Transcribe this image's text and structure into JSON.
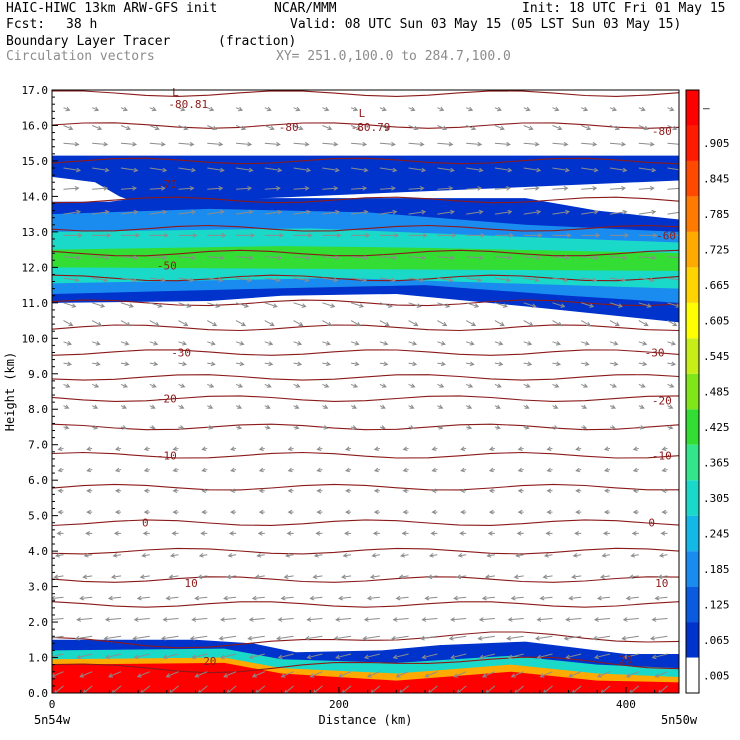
{
  "header": {
    "model": "HAIC-HIWC 13km ARW-GFS init",
    "org": "NCAR/MMM",
    "init": "Init: 18 UTC Fri 01 May 15",
    "fcst_label": "Fcst:",
    "fcst_value": "38 h",
    "valid": "Valid: 08 UTC Sun 03 May 15 (05 LST Sun 03 May 15)",
    "field": "Boundary Layer Tracer",
    "field_units": "(fraction)",
    "vectors": "Circulation vectors",
    "xsec": "XY= 251.0,100.0 to 284.7,100.0"
  },
  "colors": {
    "contour": "#8b1a1a",
    "vector": "#8c8c8c",
    "scale": [
      "#ffffff",
      "#0033cc",
      "#0a5be0",
      "#1a8cf0",
      "#14b8e6",
      "#1ad9c8",
      "#33e68c",
      "#33dd33",
      "#80e61a",
      "#c8ee1a",
      "#ffff00",
      "#ffd400",
      "#ffaa00",
      "#ff7a00",
      "#ff4a00",
      "#ff1a00",
      "#ff0000"
    ]
  },
  "chart_data": {
    "type": "cross-section",
    "xlabel": "Distance (km)",
    "ylabel": "Height (km)",
    "xlim": [
      0,
      437
    ],
    "ylim": [
      0,
      17
    ],
    "x_ticks": [
      0,
      200,
      400
    ],
    "y_ticks": [
      "0.0",
      "1.0",
      "2.0",
      "3.0",
      "4.0",
      "5.0",
      "6.0",
      "7.0",
      "8.0",
      "9.0",
      "10.0",
      "11.0",
      "12.0",
      "13.0",
      "14.0",
      "15.0",
      "16.0",
      "17.0"
    ],
    "x_left_label": "5n54w",
    "x_right_label": "5n50w",
    "colorbar": [
      ".005",
      ".065",
      ".125",
      ".185",
      ".245",
      ".305",
      ".365",
      ".425",
      ".485",
      ".545",
      ".605",
      ".665",
      ".725",
      ".785",
      ".845",
      ".905",
      "–"
    ],
    "contour_labels": [
      {
        "text": "L",
        "x": 86,
        "y": 16.95
      },
      {
        "text": "-80.81",
        "x": 95,
        "y": 16.6
      },
      {
        "text": "-80",
        "x": 165,
        "y": 15.95
      },
      {
        "text": "L",
        "x": 216,
        "y": 16.35
      },
      {
        "text": "-80.79",
        "x": 222,
        "y": 15.95
      },
      {
        "text": "-80",
        "x": 425,
        "y": 15.85
      },
      {
        "text": "-70",
        "x": 80,
        "y": 14.35
      },
      {
        "text": "-60",
        "x": 428,
        "y": 12.9
      },
      {
        "text": "-50",
        "x": 80,
        "y": 12.05
      },
      {
        "text": "-30",
        "x": 90,
        "y": 9.6
      },
      {
        "text": "-30",
        "x": 420,
        "y": 9.6
      },
      {
        "text": "-20",
        "x": 80,
        "y": 8.3
      },
      {
        "text": "-20",
        "x": 425,
        "y": 8.25
      },
      {
        "text": "-10",
        "x": 80,
        "y": 6.7
      },
      {
        "text": "-10",
        "x": 425,
        "y": 6.7
      },
      {
        "text": "0",
        "x": 65,
        "y": 4.8
      },
      {
        "text": "0",
        "x": 418,
        "y": 4.8
      },
      {
        "text": "10",
        "x": 97,
        "y": 3.1
      },
      {
        "text": "10",
        "x": 425,
        "y": 3.1
      },
      {
        "text": "20",
        "x": 110,
        "y": 0.9
      },
      {
        "text": "20",
        "x": 400,
        "y": 0.95
      }
    ],
    "isotherm_heights": [
      0.8,
      1.5,
      2.5,
      3.2,
      4.0,
      4.8,
      5.8,
      6.7,
      7.5,
      8.3,
      8.9,
      9.6,
      10.3,
      11.0,
      11.7,
      12.4,
      13.1,
      13.9,
      15.0,
      16.0,
      16.9
    ],
    "vector_rows": [
      {
        "z": 16.5,
        "u": 4,
        "w": -0.1
      },
      {
        "z": 16.0,
        "u": 6,
        "w": -0.15
      },
      {
        "z": 15.5,
        "u": 10,
        "w": -0.05
      },
      {
        "z": 14.8,
        "u": 11,
        "w": -0.1
      },
      {
        "z": 14.2,
        "u": 10,
        "w": 0.05
      },
      {
        "z": 13.5,
        "u": 11,
        "w": 0.1
      },
      {
        "z": 12.9,
        "u": 12,
        "w": 0.0
      },
      {
        "z": 12.3,
        "u": 11,
        "w": -0.05
      },
      {
        "z": 11.7,
        "u": 10,
        "w": -0.1
      },
      {
        "z": 11.0,
        "u": 8,
        "w": -0.15
      },
      {
        "z": 10.5,
        "u": 6,
        "w": -0.2
      },
      {
        "z": 9.9,
        "u": 5,
        "w": -0.1
      },
      {
        "z": 9.3,
        "u": 5,
        "w": -0.05
      },
      {
        "z": 8.7,
        "u": 4,
        "w": -0.1
      },
      {
        "z": 8.1,
        "u": 3,
        "w": -0.1
      },
      {
        "z": 7.5,
        "u": 2,
        "w": -0.05
      },
      {
        "z": 6.9,
        "u": -2,
        "w": -0.05
      },
      {
        "z": 6.3,
        "u": -3,
        "w": -0.05
      },
      {
        "z": 5.7,
        "u": -3,
        "w": 0.0
      },
      {
        "z": 5.1,
        "u": -3,
        "w": 0.0
      },
      {
        "z": 4.5,
        "u": -4,
        "w": 0.0
      },
      {
        "z": 3.9,
        "u": -5,
        "w": -0.05
      },
      {
        "z": 3.3,
        "u": -6,
        "w": -0.05
      },
      {
        "z": 2.7,
        "u": -8,
        "w": -0.05
      },
      {
        "z": 2.1,
        "u": -10,
        "w": -0.05
      },
      {
        "z": 1.6,
        "u": -11,
        "w": -0.1
      },
      {
        "z": 1.1,
        "u": -10,
        "w": -0.15
      },
      {
        "z": 0.6,
        "u": -8,
        "w": -0.2
      },
      {
        "z": 0.2,
        "u": -6,
        "w": -0.3
      }
    ],
    "tracer_bands": [
      {
        "level": ".005-.065",
        "top": [
          [
            0,
            15.15
          ],
          [
            437,
            15.15
          ]
        ],
        "bottom": [
          [
            0,
            14.55
          ],
          [
            30,
            14.4
          ],
          [
            47,
            14.0
          ],
          [
            60,
            13.8
          ],
          [
            437,
            14.45
          ]
        ]
      },
      {
        "level": ".005-.065",
        "top": [
          [
            0,
            13.85
          ],
          [
            40,
            13.85
          ],
          [
            60,
            13.95
          ],
          [
            330,
            13.95
          ],
          [
            380,
            13.6
          ],
          [
            437,
            13.35
          ]
        ],
        "bottom": [
          [
            0,
            11.0
          ],
          [
            110,
            11.05
          ],
          [
            160,
            11.2
          ],
          [
            240,
            11.25
          ],
          [
            330,
            10.9
          ],
          [
            437,
            10.45
          ]
        ]
      },
      {
        "level": ".125-.185",
        "top": [
          [
            0,
            13.5
          ],
          [
            110,
            13.65
          ],
          [
            220,
            13.55
          ],
          [
            330,
            13.2
          ],
          [
            437,
            13.0
          ]
        ],
        "bottom": [
          [
            0,
            11.25
          ],
          [
            150,
            11.4
          ],
          [
            260,
            11.5
          ],
          [
            360,
            11.2
          ],
          [
            437,
            11.0
          ]
        ]
      },
      {
        "level": ".245-.305",
        "top": [
          [
            0,
            13.0
          ],
          [
            180,
            13.1
          ],
          [
            300,
            12.9
          ],
          [
            437,
            12.7
          ]
        ],
        "bottom": [
          [
            0,
            11.55
          ],
          [
            200,
            11.7
          ],
          [
            437,
            11.4
          ]
        ]
      },
      {
        "level": ".365-.425",
        "top": [
          [
            0,
            12.5
          ],
          [
            160,
            12.6
          ],
          [
            260,
            12.55
          ],
          [
            437,
            12.4
          ]
        ],
        "bottom": [
          [
            0,
            12.0
          ],
          [
            437,
            11.9
          ]
        ]
      },
      {
        "level": ".005-.065",
        "top": [
          [
            0,
            1.5
          ],
          [
            100,
            1.5
          ],
          [
            140,
            1.4
          ],
          [
            170,
            1.15
          ],
          [
            230,
            1.2
          ],
          [
            270,
            1.35
          ],
          [
            330,
            1.45
          ],
          [
            360,
            1.3
          ],
          [
            400,
            1.1
          ],
          [
            437,
            1.1
          ]
        ],
        "bottom": [
          [
            0,
            0.0
          ],
          [
            437,
            0.0
          ]
        ]
      },
      {
        "level": ".245-.305",
        "top": [
          [
            0,
            1.2
          ],
          [
            120,
            1.25
          ],
          [
            160,
            0.95
          ],
          [
            240,
            0.85
          ],
          [
            320,
            1.05
          ],
          [
            380,
            0.8
          ],
          [
            437,
            0.7
          ]
        ],
        "bottom": [
          [
            0,
            0.0
          ],
          [
            437,
            0.0
          ]
        ]
      },
      {
        "level": ".665-.725",
        "top": [
          [
            0,
            0.95
          ],
          [
            120,
            1.0
          ],
          [
            160,
            0.7
          ],
          [
            240,
            0.55
          ],
          [
            320,
            0.8
          ],
          [
            380,
            0.55
          ],
          [
            437,
            0.45
          ]
        ],
        "bottom": [
          [
            0,
            0.0
          ],
          [
            437,
            0.0
          ]
        ]
      },
      {
        "level": ".905-",
        "top": [
          [
            0,
            0.8
          ],
          [
            120,
            0.85
          ],
          [
            160,
            0.55
          ],
          [
            240,
            0.35
          ],
          [
            320,
            0.6
          ],
          [
            380,
            0.35
          ],
          [
            437,
            0.3
          ]
        ],
        "bottom": [
          [
            0,
            0.0
          ],
          [
            437,
            0.0
          ]
        ]
      }
    ]
  }
}
